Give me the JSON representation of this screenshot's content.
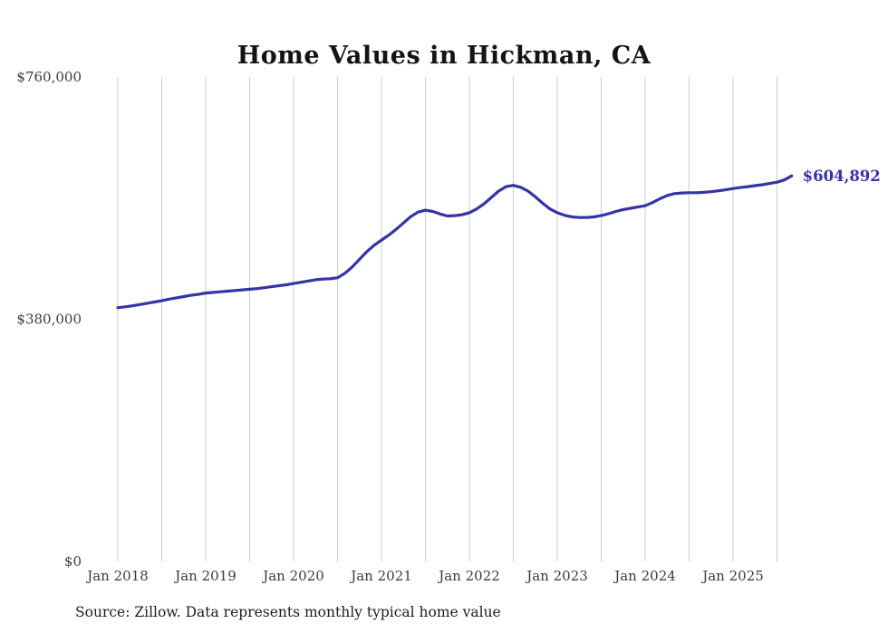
{
  "title": "Home Values in Hickman, CA",
  "source_note": "Source: Zillow. Data represents monthly typical home value",
  "chart_data": {
    "type": "line",
    "series_name": "Monthly typical home value",
    "x_start_month": "Jan 2018",
    "x_interval": "monthly",
    "x_tick_labels": [
      "Jan 2018",
      "Jan 2019",
      "Jan 2020",
      "Jan 2021",
      "Jan 2022",
      "Jan 2023",
      "Jan 2024",
      "Jan 2025"
    ],
    "y_tick_labels": [
      "$0",
      "$380,000",
      "$760,000"
    ],
    "y_ticks": [
      0,
      380000,
      760000
    ],
    "ylim": [
      0,
      760000
    ],
    "grid": "vertical-semiannual",
    "legend": "none",
    "line_color": "#3534a4",
    "grid_color": "#cccccc",
    "end_label": "$604,892",
    "end_value": 604892,
    "values": [
      398000,
      399500,
      401000,
      403000,
      405000,
      407000,
      409000,
      411500,
      413500,
      415500,
      417500,
      419000,
      421000,
      422000,
      423000,
      424000,
      425000,
      426000,
      427000,
      428000,
      429500,
      431000,
      432500,
      434000,
      436000,
      438000,
      440000,
      442000,
      443000,
      443500,
      445000,
      452000,
      462000,
      474000,
      486000,
      496000,
      504000,
      512000,
      521000,
      531000,
      541000,
      548000,
      551000,
      549000,
      545000,
      542000,
      542500,
      544000,
      547000,
      553000,
      561000,
      571000,
      581000,
      588000,
      590000,
      587000,
      581000,
      572000,
      562000,
      553000,
      547000,
      543000,
      540500,
      539500,
      539500,
      540500,
      542500,
      545500,
      549000,
      552000,
      554000,
      556000,
      558000,
      563000,
      569000,
      574000,
      577000,
      578000,
      578500,
      578500,
      579000,
      580000,
      581500,
      583000,
      585000,
      586500,
      588000,
      589500,
      591000,
      593000,
      595000,
      598500,
      604892
    ]
  }
}
